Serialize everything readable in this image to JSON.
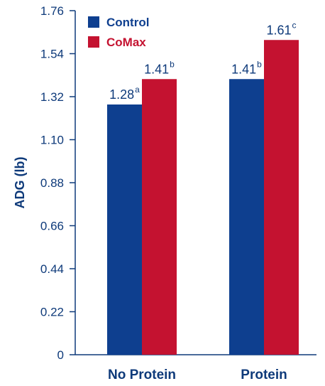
{
  "chart_data": {
    "type": "bar",
    "ylabel": "ADG (lb)",
    "xlabel": "",
    "ylim": [
      0,
      1.76
    ],
    "y_ticks": [
      "0",
      "0.22",
      "0.44",
      "0.66",
      "0.88",
      "1.10",
      "1.32",
      "1.54",
      "1.76"
    ],
    "categories": [
      "No Protein",
      "Protein"
    ],
    "series": [
      {
        "name": "Control",
        "color": "#0e3f8f",
        "values": [
          1.28,
          1.41
        ],
        "labels": [
          "1.28",
          "1.41"
        ],
        "superscripts": [
          "a",
          "b"
        ]
      },
      {
        "name": "CoMax",
        "color": "#c41230",
        "values": [
          1.41,
          1.61
        ],
        "labels": [
          "1.41",
          "1.61"
        ],
        "superscripts": [
          "b",
          "c"
        ]
      }
    ],
    "legend_position": "top-left",
    "grid": false
  }
}
